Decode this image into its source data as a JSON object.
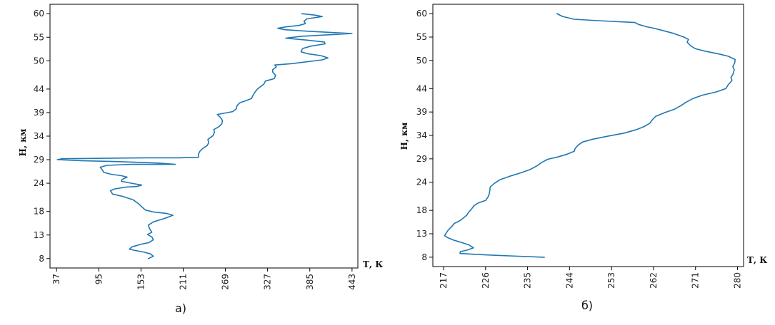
{
  "chart_data": [
    {
      "type": "line",
      "caption": "а)",
      "xlabel": "Т, К",
      "ylabel": "Н, км",
      "xlim": [
        28,
        451
      ],
      "ylim": [
        6,
        62
      ],
      "x_ticks": [
        37,
        95,
        153,
        211,
        269,
        327,
        385,
        443
      ],
      "y_ticks": [
        8,
        13,
        18,
        24,
        29,
        34,
        39,
        44,
        50,
        55,
        60
      ],
      "grid": false,
      "line_color": "#1f77b4",
      "series": [
        {
          "points": [
            [
              163,
              8.0
            ],
            [
              170,
              8.5
            ],
            [
              166,
              9.0
            ],
            [
              156,
              9.4
            ],
            [
              146,
              9.7
            ],
            [
              137,
              10.0
            ],
            [
              141,
              10.5
            ],
            [
              152,
              11.0
            ],
            [
              164,
              11.4
            ],
            [
              170,
              12.0
            ],
            [
              168,
              12.6
            ],
            [
              162,
              13.1
            ],
            [
              168,
              13.6
            ],
            [
              165,
              14.3
            ],
            [
              163,
              15.1
            ],
            [
              170,
              15.8
            ],
            [
              185,
              16.5
            ],
            [
              197,
              17.2
            ],
            [
              188,
              17.6
            ],
            [
              170,
              17.9
            ],
            [
              159,
              18.3
            ],
            [
              154,
              19.0
            ],
            [
              150,
              19.6
            ],
            [
              142,
              20.5
            ],
            [
              128,
              21.2
            ],
            [
              114,
              21.7
            ],
            [
              111,
              22.4
            ],
            [
              117,
              22.8
            ],
            [
              133,
              23.2
            ],
            [
              147,
              23.3
            ],
            [
              154,
              23.6
            ],
            [
              140,
              24.0
            ],
            [
              126,
              24.4
            ],
            [
              127,
              24.8
            ],
            [
              134,
              25.3
            ],
            [
              126,
              25.6
            ],
            [
              112,
              25.9
            ],
            [
              102,
              26.3
            ],
            [
              100,
              26.8
            ],
            [
              97,
              27.4
            ],
            [
              106,
              27.8
            ],
            [
              140,
              28.0
            ],
            [
              200,
              28.0
            ],
            [
              175,
              28.3
            ],
            [
              120,
              28.6
            ],
            [
              70,
              28.8
            ],
            [
              38,
              29.0
            ],
            [
              45,
              29.2
            ],
            [
              100,
              29.3
            ],
            [
              160,
              29.4
            ],
            [
              207,
              29.4
            ],
            [
              232,
              29.5
            ],
            [
              232,
              30.2
            ],
            [
              234,
              30.8
            ],
            [
              238,
              31.4
            ],
            [
              244,
              32.0
            ],
            [
              246,
              32.6
            ],
            [
              245,
              33.3
            ],
            [
              252,
              34.1
            ],
            [
              254,
              34.8
            ],
            [
              253,
              35.4
            ],
            [
              260,
              36.0
            ],
            [
              264,
              36.6
            ],
            [
              265,
              37.3
            ],
            [
              262,
              38.0
            ],
            [
              258,
              38.6
            ],
            [
              279,
              39.2
            ],
            [
              284,
              39.8
            ],
            [
              285,
              40.5
            ],
            [
              289,
              41.1
            ],
            [
              297,
              41.5
            ],
            [
              305,
              42.0
            ],
            [
              307,
              42.7
            ],
            [
              310,
              43.4
            ],
            [
              313,
              44.0
            ],
            [
              318,
              44.6
            ],
            [
              322,
              45.1
            ],
            [
              324,
              45.7
            ],
            [
              336,
              46.2
            ],
            [
              338,
              46.9
            ],
            [
              334,
              47.6
            ],
            [
              334,
              48.1
            ],
            [
              339,
              48.7
            ],
            [
              337,
              49.1
            ],
            [
              360,
              49.4
            ],
            [
              402,
              50.2
            ],
            [
              410,
              50.6
            ],
            [
              400,
              51.1
            ],
            [
              382,
              51.5
            ],
            [
              373,
              51.9
            ],
            [
              375,
              52.6
            ],
            [
              386,
              53.1
            ],
            [
              406,
              53.6
            ],
            [
              405,
              54.0
            ],
            [
              380,
              54.4
            ],
            [
              352,
              54.8
            ],
            [
              373,
              55.2
            ],
            [
              420,
              55.6
            ],
            [
              443,
              55.8
            ],
            [
              415,
              56.0
            ],
            [
              380,
              56.3
            ],
            [
              351,
              56.6
            ],
            [
              341,
              56.9
            ],
            [
              352,
              57.2
            ],
            [
              370,
              57.5
            ],
            [
              379,
              57.9
            ],
            [
              377,
              58.4
            ],
            [
              381,
              58.9
            ],
            [
              402,
              59.4
            ],
            [
              392,
              59.7
            ],
            [
              374,
              60.0
            ]
          ]
        }
      ]
    },
    {
      "type": "line",
      "caption": "б)",
      "xlabel": "Т, К",
      "ylabel": "Н, км",
      "xlim": [
        214.7,
        281.3
      ],
      "ylim": [
        6,
        62
      ],
      "x_ticks": [
        217,
        226,
        235,
        244,
        253,
        262,
        271,
        280
      ],
      "y_ticks": [
        8,
        13,
        18,
        24,
        29,
        34,
        39,
        44,
        50,
        55,
        60
      ],
      "grid": false,
      "line_color": "#1f77b4",
      "series": [
        {
          "points": [
            [
              238.6,
              8.0
            ],
            [
              233.0,
              8.2
            ],
            [
              228.0,
              8.4
            ],
            [
              224.0,
              8.6
            ],
            [
              220.5,
              8.8
            ],
            [
              220.6,
              9.2
            ],
            [
              222.0,
              9.5
            ],
            [
              223.4,
              10.0
            ],
            [
              222.5,
              10.6
            ],
            [
              221.0,
              11.1
            ],
            [
              219.3,
              11.6
            ],
            [
              218.0,
              12.1
            ],
            [
              217.2,
              12.6
            ],
            [
              217.6,
              13.2
            ],
            [
              218.0,
              13.8
            ],
            [
              218.8,
              14.6
            ],
            [
              219.3,
              15.2
            ],
            [
              220.5,
              15.8
            ],
            [
              221.4,
              16.5
            ],
            [
              222.0,
              17.0
            ],
            [
              222.3,
              17.5
            ],
            [
              223.0,
              18.3
            ],
            [
              223.5,
              19.0
            ],
            [
              224.5,
              19.6
            ],
            [
              226.0,
              20.1
            ],
            [
              226.5,
              20.8
            ],
            [
              226.8,
              21.5
            ],
            [
              226.9,
              22.2
            ],
            [
              227.0,
              23.0
            ],
            [
              227.8,
              23.7
            ],
            [
              229.0,
              24.5
            ],
            [
              231.2,
              25.3
            ],
            [
              233.5,
              26.0
            ],
            [
              235.5,
              26.7
            ],
            [
              237.0,
              27.5
            ],
            [
              238.0,
              28.2
            ],
            [
              239.3,
              28.9
            ],
            [
              241.5,
              29.4
            ],
            [
              243.5,
              30.0
            ],
            [
              245.0,
              30.6
            ],
            [
              245.2,
              31.2
            ],
            [
              245.8,
              31.9
            ],
            [
              246.8,
              32.6
            ],
            [
              249.0,
              33.2
            ],
            [
              252.0,
              33.8
            ],
            [
              255.8,
              34.5
            ],
            [
              258.5,
              35.3
            ],
            [
              260.0,
              35.9
            ],
            [
              261.2,
              36.6
            ],
            [
              261.8,
              37.4
            ],
            [
              262.5,
              38.1
            ],
            [
              264.5,
              38.9
            ],
            [
              266.5,
              39.6
            ],
            [
              267.8,
              40.3
            ],
            [
              269.0,
              41.1
            ],
            [
              270.5,
              41.9
            ],
            [
              272.5,
              42.6
            ],
            [
              275.5,
              43.3
            ],
            [
              277.5,
              44.0
            ],
            [
              278.0,
              44.8
            ],
            [
              278.8,
              45.7
            ],
            [
              278.6,
              46.4
            ],
            [
              279.0,
              47.0
            ],
            [
              279.3,
              48.0
            ],
            [
              279.0,
              48.7
            ],
            [
              279.4,
              49.5
            ],
            [
              279.5,
              50.2
            ],
            [
              278.0,
              50.9
            ],
            [
              276.0,
              51.4
            ],
            [
              273.0,
              52.0
            ],
            [
              271.0,
              52.5
            ],
            [
              270.0,
              53.1
            ],
            [
              269.2,
              53.9
            ],
            [
              269.5,
              54.5
            ],
            [
              268.5,
              55.0
            ],
            [
              266.2,
              55.8
            ],
            [
              264.0,
              56.4
            ],
            [
              262.0,
              56.9
            ],
            [
              260.5,
              57.2
            ],
            [
              258.8,
              57.7
            ],
            [
              258.0,
              58.1
            ],
            [
              250.0,
              58.5
            ],
            [
              245.0,
              58.8
            ],
            [
              242.5,
              59.4
            ],
            [
              241.3,
              60.0
            ]
          ]
        }
      ]
    }
  ]
}
